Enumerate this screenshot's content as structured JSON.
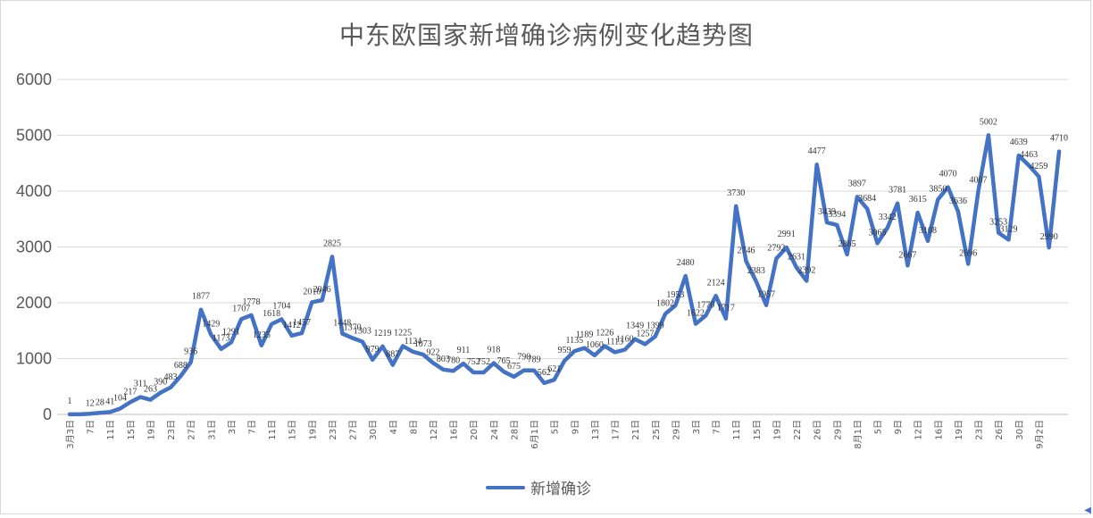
{
  "chart_data": {
    "type": "line",
    "title": "中东欧国家新增确诊病例变化趋势图",
    "xlabel": "",
    "ylabel": "",
    "ylim": [
      0,
      6000
    ],
    "yticks": [
      "0",
      "1000",
      "2000",
      "3000",
      "4000",
      "5000",
      "6000"
    ],
    "grid": true,
    "legend_position": "bottom",
    "color": "#4472c4",
    "x_tick_labels": [
      "3月3日",
      "7日",
      "11日",
      "15日",
      "19日",
      "23日",
      "27日",
      "31日",
      "3日",
      "7日",
      "11日",
      "15日",
      "19日",
      "23日",
      "27日",
      "30日",
      "4日",
      "8日",
      "12日",
      "16日",
      "20日",
      "24日",
      "28日",
      "6月1日",
      "5日",
      "9日",
      "13日",
      "17日",
      "21日",
      "25日",
      "29日",
      "3日",
      "7日",
      "11日",
      "15日",
      "19日",
      "22日",
      "26日",
      "29日",
      "8月1日",
      "5日",
      "9日",
      "12日",
      "16日",
      "19日",
      "23日",
      "26日",
      "30日",
      "9月2日"
    ],
    "series": [
      {
        "name": "新增确诊",
        "values": [
          1,
          1,
          12,
          28,
          41,
          104,
          217,
          311,
          263,
          390,
          483,
          688,
          936,
          1877,
          1429,
          1173,
          1291,
          1707,
          1778,
          1235,
          1618,
          1704,
          1412,
          1457,
          2010,
          2046,
          2825,
          1448,
          1370,
          1303,
          979,
          1219,
          887,
          1225,
          1124,
          1073,
          922,
          803,
          780,
          911,
          752,
          752,
          918,
          765,
          675,
          790,
          789,
          562,
          621,
          959,
          1135,
          1189,
          1060,
          1226,
          1113,
          1160,
          1349,
          1257,
          1399,
          1802,
          1953,
          2480,
          1622,
          1770,
          2124,
          1717,
          3730,
          2746,
          2383,
          1957,
          2792,
          2991,
          2631,
          2392,
          4477,
          3439,
          3394,
          2865,
          3897,
          3684,
          3065,
          3342,
          3781,
          2667,
          3615,
          3108,
          3850,
          4070,
          3636,
          2696,
          4007,
          5002,
          3253,
          3129,
          4639,
          4463,
          4259,
          2990,
          4710
        ],
        "labels": [
          "1",
          "",
          "12",
          "28",
          "41",
          "104",
          "217",
          "311",
          "263",
          "390",
          "483",
          "688",
          "936",
          "1877",
          "1429",
          "1173",
          "1291",
          "1707",
          "1778",
          "1235",
          "1618",
          "1704",
          "1412",
          "1457",
          "2010",
          "2046",
          "2825",
          "1448",
          "1370",
          "1303",
          "979",
          "1219",
          "887",
          "1225",
          "1124",
          "1073",
          "922",
          "803",
          "780",
          "911",
          "752",
          "752",
          "918",
          "765",
          "675",
          "790",
          "789",
          "562",
          "621",
          "959",
          "1135",
          "1189",
          "1060",
          "1226",
          "1113",
          "1160",
          "1349",
          "1257",
          "1399",
          "1802",
          "1953",
          "2480",
          "1622",
          "1770",
          "2124",
          "1717",
          "3730",
          "2746",
          "2383",
          "1957",
          "2792",
          "2991",
          "2631",
          "2392",
          "4477",
          "3439",
          "3394",
          "2865",
          "3897",
          "3684",
          "3065",
          "3342",
          "3781",
          "2667",
          "3615",
          "3108",
          "3850",
          "4070",
          "3636",
          "2696",
          "4007",
          "5002",
          "3253",
          "3129",
          "4639",
          "4463",
          "4259",
          "2990",
          "4710"
        ]
      }
    ]
  },
  "legend": {
    "label": "新增确诊"
  }
}
